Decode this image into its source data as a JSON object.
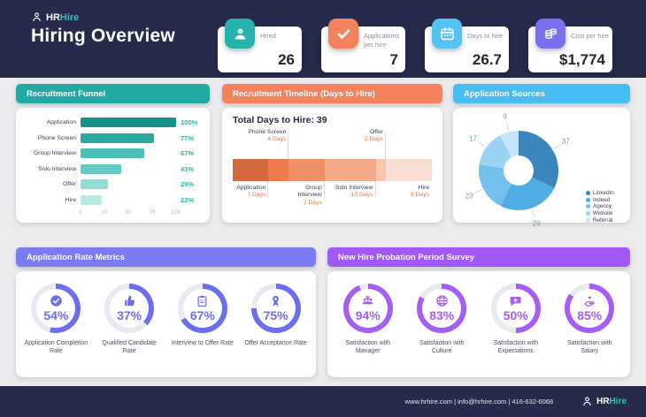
{
  "brand": {
    "hr": "HR",
    "hire": "Hire",
    "accent_color": "#35c2b9"
  },
  "header": {
    "title": "Hiring Overview",
    "bg_color": "#262b4b"
  },
  "kpis": [
    {
      "label": "Hired",
      "value": "26",
      "icon": "person-icon",
      "color": "#26b3ae"
    },
    {
      "label": "Applications per hire",
      "value": "7",
      "icon": "check-icon",
      "color": "#f5825c"
    },
    {
      "label": "Days to hire",
      "value": "26.7",
      "icon": "calendar-icon",
      "color": "#55c3f4"
    },
    {
      "label": "Cost per hire",
      "value": "$1,774",
      "icon": "coins-icon",
      "color": "#7a70ef"
    }
  ],
  "chart_data": [
    {
      "type": "bar",
      "title": "Recruitment Funnel",
      "header_color": "#22a9a3",
      "orientation": "horizontal",
      "categories": [
        "Application",
        "Phone Screen",
        "Group Interview",
        "Solo Interview",
        "Offer",
        "Hire"
      ],
      "values": [
        100,
        77,
        67,
        43,
        29,
        22
      ],
      "value_suffix": "%",
      "value_label_color": "#2bb3ac",
      "bar_colors": [
        "#17918c",
        "#2aa8a2",
        "#4cbfb9",
        "#66cac4",
        "#92dbd6",
        "#b9e9e5"
      ],
      "xlim": [
        0,
        100
      ],
      "xticks": [
        0,
        25,
        50,
        75,
        100
      ]
    },
    {
      "type": "stacked-bar",
      "title": "Recruitment Timeline (Days to Hire)",
      "header_color": "#f5825c",
      "total_label": "Total Days to Hire: 39",
      "total_days": 39,
      "days_label_color": "#f4703f",
      "segments": [
        {
          "name": "Application",
          "days": 7,
          "days_label": "7 Days",
          "color": "#d5683e",
          "label_pos": "below",
          "tick": true
        },
        {
          "name": "Phone Screen",
          "days": 4,
          "days_label": "4 Days",
          "color": "#ee7b4b",
          "label_pos": "above",
          "tick": true
        },
        {
          "name": "Group Interview",
          "days": 7,
          "days_label": "7 Days",
          "color": "#f18f68",
          "label_pos": "below",
          "tick": true
        },
        {
          "name": "Solo Interview",
          "days": 10,
          "days_label": "10 Days",
          "color": "#f4a98b",
          "label_pos": "below",
          "tick": true
        },
        {
          "name": "Offer",
          "days": 2,
          "days_label": "2 Days",
          "color": "#f8c6b0",
          "label_pos": "above",
          "tick": true
        },
        {
          "name": "Hire",
          "days": 9,
          "days_label": "9 Days",
          "color": "#fadfd4",
          "label_pos": "below",
          "tick": false
        }
      ]
    },
    {
      "type": "pie",
      "donut": true,
      "title": "Application Sources",
      "header_color": "#47bdf2",
      "labels": [
        "LinkedIn",
        "Indeed",
        "Agency",
        "Website",
        "Referral"
      ],
      "values": [
        37,
        29,
        23,
        17,
        9
      ],
      "colors": [
        "#3a86bc",
        "#4fade4",
        "#74c0ec",
        "#9bd3f4",
        "#c4e6fa"
      ],
      "legend_position": "bottom-right",
      "number_label_color": "#7797ab"
    },
    {
      "type": "gauges",
      "title": "Application Rate Metrics",
      "header_color": "#7b7cf3",
      "accent_color": "#6b6ef0",
      "track_color": "#e9e9f2",
      "items": [
        {
          "pct": 54,
          "display": "54%",
          "label": "Application Completion Rate",
          "icon": "check-circle-icon"
        },
        {
          "pct": 37,
          "display": "37%",
          "label": "Qualified Candidate Rate",
          "icon": "thumbs-up-icon"
        },
        {
          "pct": 67,
          "display": "67%",
          "label": "Interview to Offer Rate",
          "icon": "clipboard-icon"
        },
        {
          "pct": 75,
          "display": "75%",
          "label": "Offer Acceptance Rate",
          "icon": "award-icon"
        }
      ]
    },
    {
      "type": "gauges",
      "title": "New Hire Probation Period Survey",
      "header_color": "#a158f7",
      "accent_color": "#a55df8",
      "track_color": "#e9e9f2",
      "items": [
        {
          "pct": 94,
          "display": "94%",
          "label": "Satisfaction with Manager",
          "icon": "team-icon"
        },
        {
          "pct": 83,
          "display": "83%",
          "label": "Satisfaction with Culture",
          "icon": "globe-icon"
        },
        {
          "pct": 50,
          "display": "50%",
          "label": "Satisfaction with Expectations",
          "icon": "chat-star-icon"
        },
        {
          "pct": 85,
          "display": "85%",
          "label": "Satisfaction with Salary",
          "icon": "hand-star-icon"
        }
      ]
    }
  ],
  "footer": {
    "contact": "www.hrhire.com | info@hrhire.com |  416-632-6068"
  }
}
